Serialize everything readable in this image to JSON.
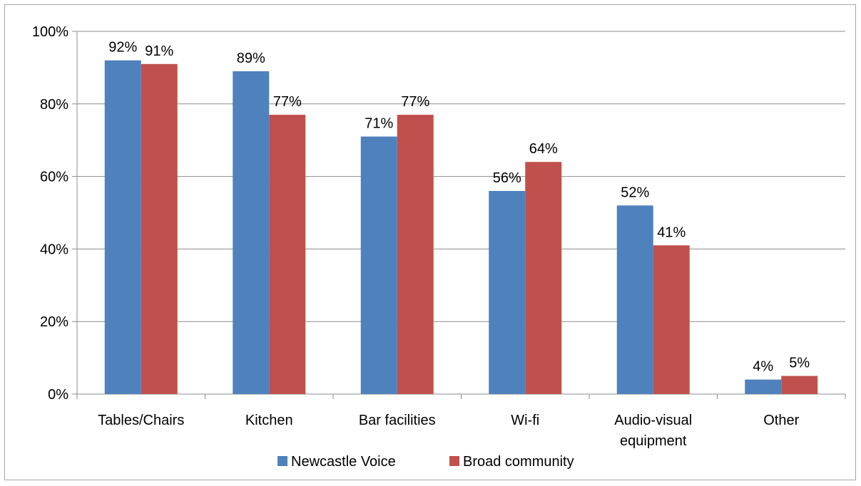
{
  "chart_data": {
    "type": "bar",
    "categories": [
      "Tables/Chairs",
      "Kitchen",
      "Bar facilities",
      "Wi-fi",
      "Audio-visual equipment",
      "Other"
    ],
    "category_lines": [
      [
        "Tables/Chairs"
      ],
      [
        "Kitchen"
      ],
      [
        "Bar facilities"
      ],
      [
        "Wi-fi"
      ],
      [
        "Audio-visual",
        "equipment"
      ],
      [
        "Other"
      ]
    ],
    "series": [
      {
        "name": "Newcastle Voice",
        "color": "#4f81bd",
        "values": [
          92,
          89,
          71,
          56,
          52,
          4
        ],
        "labels": [
          "92%",
          "89%",
          "71%",
          "56%",
          "52%",
          "4%"
        ]
      },
      {
        "name": "Broad community",
        "color": "#c0504d",
        "values": [
          91,
          77,
          77,
          64,
          41,
          5
        ],
        "labels": [
          "91%",
          "77%",
          "77%",
          "64%",
          "41%",
          "5%"
        ]
      }
    ],
    "y_ticks": [
      0,
      20,
      40,
      60,
      80,
      100
    ],
    "y_tick_labels": [
      "0%",
      "20%",
      "40%",
      "60%",
      "80%",
      "100%"
    ],
    "ylim": [
      0,
      100
    ],
    "grid": true,
    "legend_position": "bottom",
    "title": "",
    "xlabel": "",
    "ylabel": ""
  }
}
